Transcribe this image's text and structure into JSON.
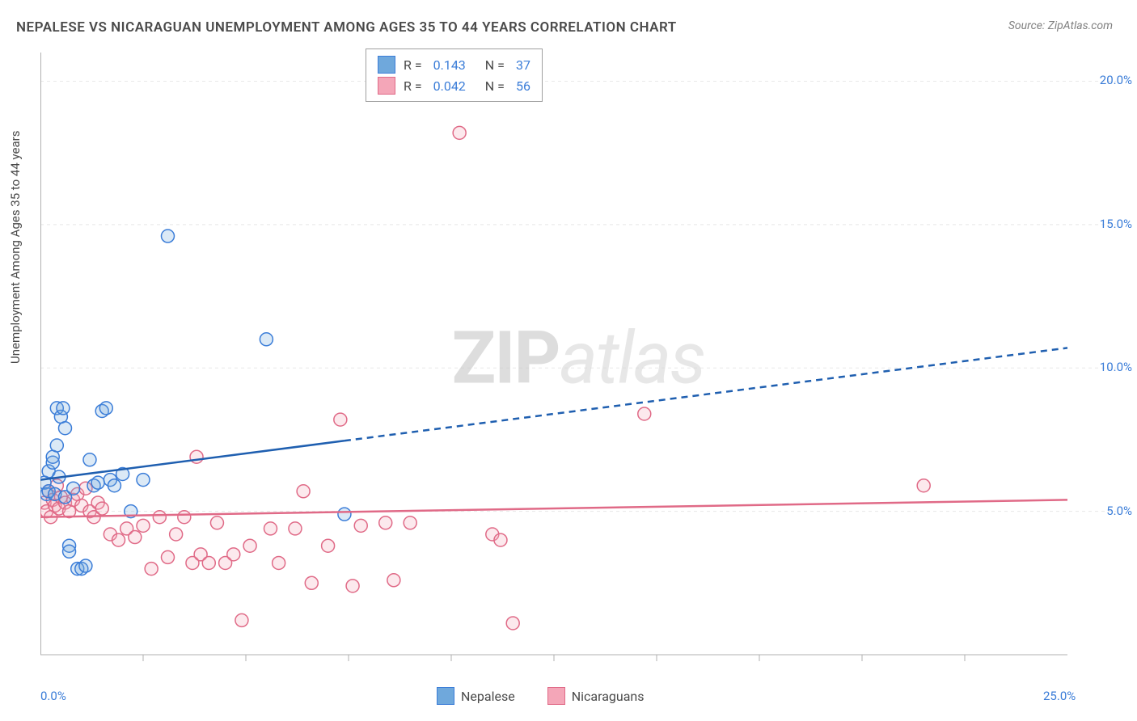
{
  "title": "NEPALESE VS NICARAGUAN UNEMPLOYMENT AMONG AGES 35 TO 44 YEARS CORRELATION CHART",
  "source": "Source: ZipAtlas.com",
  "watermark_zip": "ZIP",
  "watermark_atlas": "atlas",
  "y_axis_label": "Unemployment Among Ages 35 to 44 years",
  "chart": {
    "type": "scatter",
    "xlim": [
      0,
      25
    ],
    "ylim": [
      0,
      21
    ],
    "x_ticks": [
      0,
      25
    ],
    "x_tick_labels": [
      "0.0%",
      "25.0%"
    ],
    "x_minor_ticks": [
      2.5,
      5,
      7.5,
      10,
      12.5,
      15,
      17.5,
      20,
      22.5
    ],
    "y_ticks": [
      5,
      10,
      15,
      20
    ],
    "y_tick_labels": [
      "5.0%",
      "10.0%",
      "15.0%",
      "20.0%"
    ],
    "grid_color": "#e8e8e8",
    "axis_color": "#b0b0b0",
    "background_color": "#ffffff",
    "marker_radius": 8,
    "marker_stroke_width": 1.5,
    "marker_fill_opacity": 0.25,
    "series": [
      {
        "name": "Nepalese",
        "color": "#6fa8dc",
        "stroke": "#3b7dd8",
        "r": "0.143",
        "n": "37",
        "trend": {
          "y_at_x0": 6.1,
          "y_at_xmax": 10.7,
          "solid_until_x": 7.4,
          "line_color": "#1f5fb0",
          "line_width": 2.5
        },
        "points": [
          [
            0.1,
            6.0
          ],
          [
            0.15,
            5.6
          ],
          [
            0.2,
            5.7
          ],
          [
            0.2,
            6.4
          ],
          [
            0.3,
            6.7
          ],
          [
            0.3,
            6.9
          ],
          [
            0.35,
            5.6
          ],
          [
            0.4,
            7.3
          ],
          [
            0.4,
            8.6
          ],
          [
            0.45,
            6.2
          ],
          [
            0.5,
            8.3
          ],
          [
            0.55,
            8.6
          ],
          [
            0.6,
            5.5
          ],
          [
            0.6,
            7.9
          ],
          [
            0.7,
            3.8
          ],
          [
            0.7,
            3.6
          ],
          [
            0.8,
            5.8
          ],
          [
            0.9,
            3.0
          ],
          [
            1.0,
            3.0
          ],
          [
            1.1,
            3.1
          ],
          [
            1.2,
            6.8
          ],
          [
            1.3,
            5.9
          ],
          [
            1.4,
            6.0
          ],
          [
            1.5,
            8.5
          ],
          [
            1.6,
            8.6
          ],
          [
            1.7,
            6.1
          ],
          [
            1.8,
            5.9
          ],
          [
            2.0,
            6.3
          ],
          [
            2.2,
            5.0
          ],
          [
            2.5,
            6.1
          ],
          [
            3.1,
            14.6
          ],
          [
            5.5,
            11.0
          ],
          [
            7.4,
            4.9
          ]
        ]
      },
      {
        "name": "Nicaraguans",
        "color": "#f4a6b8",
        "stroke": "#e06a87",
        "r": "0.042",
        "n": "56",
        "trend": {
          "y_at_x0": 4.8,
          "y_at_xmax": 5.4,
          "solid_until_x": 25,
          "line_color": "#e06a87",
          "line_width": 2.5
        },
        "points": [
          [
            0.1,
            5.3
          ],
          [
            0.15,
            5.0
          ],
          [
            0.2,
            5.7
          ],
          [
            0.25,
            4.8
          ],
          [
            0.3,
            5.4
          ],
          [
            0.35,
            5.2
          ],
          [
            0.4,
            5.9
          ],
          [
            0.45,
            5.1
          ],
          [
            0.5,
            5.5
          ],
          [
            0.6,
            5.3
          ],
          [
            0.7,
            5.0
          ],
          [
            0.8,
            5.4
          ],
          [
            0.9,
            5.6
          ],
          [
            1.0,
            5.2
          ],
          [
            1.1,
            5.8
          ],
          [
            1.2,
            5.0
          ],
          [
            1.3,
            4.8
          ],
          [
            1.4,
            5.3
          ],
          [
            1.5,
            5.1
          ],
          [
            1.7,
            4.2
          ],
          [
            1.9,
            4.0
          ],
          [
            2.1,
            4.4
          ],
          [
            2.3,
            4.1
          ],
          [
            2.5,
            4.5
          ],
          [
            2.7,
            3.0
          ],
          [
            2.9,
            4.8
          ],
          [
            3.1,
            3.4
          ],
          [
            3.3,
            4.2
          ],
          [
            3.5,
            4.8
          ],
          [
            3.7,
            3.2
          ],
          [
            3.8,
            6.9
          ],
          [
            3.9,
            3.5
          ],
          [
            4.1,
            3.2
          ],
          [
            4.3,
            4.6
          ],
          [
            4.5,
            3.2
          ],
          [
            4.7,
            3.5
          ],
          [
            4.9,
            1.2
          ],
          [
            5.1,
            3.8
          ],
          [
            5.6,
            4.4
          ],
          [
            5.8,
            3.2
          ],
          [
            6.2,
            4.4
          ],
          [
            6.4,
            5.7
          ],
          [
            6.6,
            2.5
          ],
          [
            7.0,
            3.8
          ],
          [
            7.3,
            8.2
          ],
          [
            7.6,
            2.4
          ],
          [
            7.8,
            4.5
          ],
          [
            8.4,
            4.6
          ],
          [
            8.6,
            2.6
          ],
          [
            9.0,
            4.6
          ],
          [
            10.2,
            18.2
          ],
          [
            11.0,
            4.2
          ],
          [
            11.2,
            4.0
          ],
          [
            11.5,
            1.1
          ],
          [
            14.7,
            8.4
          ],
          [
            21.5,
            5.9
          ]
        ]
      }
    ]
  },
  "legend": {
    "r_prefix": "R  =",
    "n_prefix": "N  =",
    "series1_label": "Nepalese",
    "series2_label": "Nicaraguans"
  }
}
